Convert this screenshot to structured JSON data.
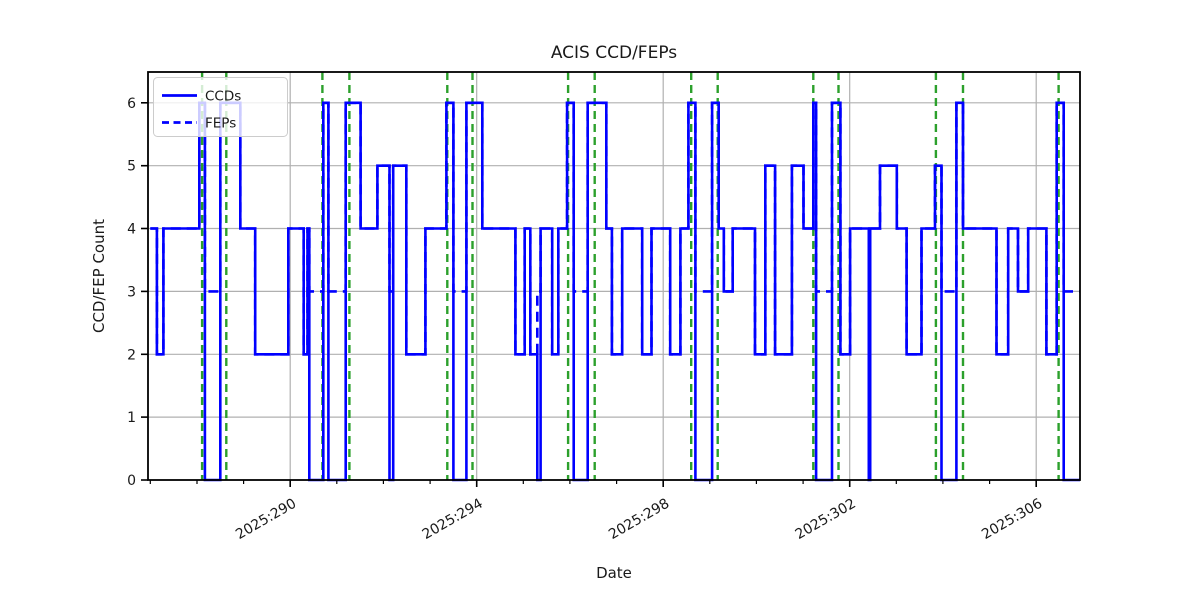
{
  "chart_data": {
    "type": "line",
    "title": "ACIS CCD/FEPs",
    "xlabel": "Date",
    "ylabel": "CCD/FEP Count",
    "xlim": [
      286.95,
      306.94
    ],
    "ylim": [
      0,
      6.49
    ],
    "grid": true,
    "background": "#ffffff",
    "x_major_ticks": [
      {
        "value": 290,
        "label": "2025:290"
      },
      {
        "value": 294,
        "label": "2025:294"
      },
      {
        "value": 298,
        "label": "2025:298"
      },
      {
        "value": 302,
        "label": "2025:302"
      },
      {
        "value": 306,
        "label": "2025:306"
      }
    ],
    "x_minor_ticks": [
      287,
      288,
      289,
      291,
      292,
      293,
      295,
      296,
      297,
      299,
      300,
      301,
      303,
      304,
      305
    ],
    "y_ticks": [
      0,
      1,
      2,
      3,
      4,
      5,
      6
    ],
    "legend": {
      "position": "upper-left",
      "entries": [
        {
          "label": "CCDs",
          "line_style": "solid",
          "color": "#0000ff"
        },
        {
          "label": "FEPs",
          "line_style": "dashed",
          "color": "#0000ff"
        }
      ]
    },
    "vlines": {
      "color": "#2ca02c",
      "line_style": "dashed",
      "x": [
        288.11,
        288.63,
        290.69,
        291.27,
        293.37,
        293.91,
        295.96,
        296.53,
        298.6,
        299.17,
        301.22,
        301.76,
        303.85,
        304.43,
        306.48
      ]
    },
    "series": [
      {
        "name": "CCDs",
        "color": "#0000ff",
        "line_style": "solid",
        "step": "post",
        "points": [
          [
            287.0,
            4
          ],
          [
            287.14,
            2
          ],
          [
            287.28,
            4
          ],
          [
            288.05,
            6
          ],
          [
            288.17,
            0
          ],
          [
            288.5,
            6
          ],
          [
            288.93,
            4
          ],
          [
            289.25,
            2
          ],
          [
            289.96,
            4
          ],
          [
            290.29,
            2
          ],
          [
            290.37,
            4
          ],
          [
            290.41,
            0
          ],
          [
            290.71,
            6
          ],
          [
            290.82,
            0
          ],
          [
            291.19,
            6
          ],
          [
            291.51,
            4
          ],
          [
            291.87,
            5
          ],
          [
            292.13,
            0
          ],
          [
            292.21,
            5
          ],
          [
            292.49,
            2
          ],
          [
            292.9,
            4
          ],
          [
            293.35,
            6
          ],
          [
            293.5,
            0
          ],
          [
            293.78,
            6
          ],
          [
            294.12,
            4
          ],
          [
            294.83,
            2
          ],
          [
            295.03,
            4
          ],
          [
            295.15,
            2
          ],
          [
            295.3,
            0
          ],
          [
            295.37,
            4
          ],
          [
            295.62,
            2
          ],
          [
            295.75,
            4
          ],
          [
            295.94,
            6
          ],
          [
            296.08,
            0
          ],
          [
            296.38,
            6
          ],
          [
            296.78,
            4
          ],
          [
            296.9,
            2
          ],
          [
            297.12,
            4
          ],
          [
            297.55,
            2
          ],
          [
            297.75,
            4
          ],
          [
            298.15,
            2
          ],
          [
            298.37,
            4
          ],
          [
            298.54,
            6
          ],
          [
            298.69,
            0
          ],
          [
            299.05,
            6
          ],
          [
            299.19,
            4
          ],
          [
            299.3,
            3
          ],
          [
            299.49,
            4
          ],
          [
            299.97,
            2
          ],
          [
            300.19,
            5
          ],
          [
            300.4,
            2
          ],
          [
            300.76,
            5
          ],
          [
            301.01,
            4
          ],
          [
            301.22,
            6
          ],
          [
            301.28,
            0
          ],
          [
            301.62,
            6
          ],
          [
            301.8,
            2
          ],
          [
            302.01,
            4
          ],
          [
            302.41,
            0
          ],
          [
            302.44,
            4
          ],
          [
            302.65,
            5
          ],
          [
            303.01,
            4
          ],
          [
            303.22,
            2
          ],
          [
            303.54,
            4
          ],
          [
            303.83,
            5
          ],
          [
            303.97,
            0
          ],
          [
            304.29,
            6
          ],
          [
            304.43,
            4
          ],
          [
            305.15,
            2
          ],
          [
            305.4,
            4
          ],
          [
            305.61,
            3
          ],
          [
            305.83,
            4
          ],
          [
            306.22,
            2
          ],
          [
            306.44,
            6
          ],
          [
            306.59,
            0
          ],
          [
            306.94,
            0
          ]
        ]
      },
      {
        "name": "FEPs",
        "color": "#0000ff",
        "line_style": "dashed",
        "step": "post",
        "points": [
          [
            287.0,
            4
          ],
          [
            287.14,
            2
          ],
          [
            287.28,
            4
          ],
          [
            288.05,
            6
          ],
          [
            288.17,
            3
          ],
          [
            288.5,
            6
          ],
          [
            288.93,
            4
          ],
          [
            289.25,
            2
          ],
          [
            289.96,
            4
          ],
          [
            290.29,
            2
          ],
          [
            290.37,
            4
          ],
          [
            290.41,
            3
          ],
          [
            290.71,
            6
          ],
          [
            290.82,
            3
          ],
          [
            291.19,
            6
          ],
          [
            291.51,
            4
          ],
          [
            291.87,
            5
          ],
          [
            292.13,
            3
          ],
          [
            292.21,
            5
          ],
          [
            292.49,
            2
          ],
          [
            292.9,
            4
          ],
          [
            293.35,
            6
          ],
          [
            293.5,
            3
          ],
          [
            293.78,
            6
          ],
          [
            294.12,
            4
          ],
          [
            294.83,
            2
          ],
          [
            295.03,
            4
          ],
          [
            295.15,
            2
          ],
          [
            295.3,
            3
          ],
          [
            295.37,
            4
          ],
          [
            295.62,
            2
          ],
          [
            295.75,
            4
          ],
          [
            295.94,
            6
          ],
          [
            296.08,
            3
          ],
          [
            296.38,
            6
          ],
          [
            296.78,
            4
          ],
          [
            296.9,
            2
          ],
          [
            297.12,
            4
          ],
          [
            297.55,
            2
          ],
          [
            297.75,
            4
          ],
          [
            298.15,
            2
          ],
          [
            298.37,
            4
          ],
          [
            298.54,
            6
          ],
          [
            298.69,
            3
          ],
          [
            299.05,
            6
          ],
          [
            299.19,
            4
          ],
          [
            299.3,
            3
          ],
          [
            299.49,
            4
          ],
          [
            299.97,
            2
          ],
          [
            300.19,
            5
          ],
          [
            300.4,
            2
          ],
          [
            300.76,
            5
          ],
          [
            301.01,
            4
          ],
          [
            301.22,
            6
          ],
          [
            301.28,
            3
          ],
          [
            301.62,
            6
          ],
          [
            301.8,
            2
          ],
          [
            302.01,
            4
          ],
          [
            302.41,
            3
          ],
          [
            302.44,
            4
          ],
          [
            302.65,
            5
          ],
          [
            303.01,
            4
          ],
          [
            303.22,
            2
          ],
          [
            303.54,
            4
          ],
          [
            303.83,
            5
          ],
          [
            303.97,
            3
          ],
          [
            304.29,
            6
          ],
          [
            304.43,
            4
          ],
          [
            305.15,
            2
          ],
          [
            305.4,
            4
          ],
          [
            305.61,
            3
          ],
          [
            305.83,
            4
          ],
          [
            306.22,
            2
          ],
          [
            306.44,
            6
          ],
          [
            306.59,
            3
          ],
          [
            306.94,
            3
          ]
        ]
      }
    ]
  },
  "colors": {
    "line_blue": "#0000ff",
    "vline_green": "#2ca02c",
    "grid_gray": "#b0b0b0",
    "spine_black": "#000000",
    "legend_border": "#cccccc",
    "legend_bg": "rgba(255,255,255,0.8)"
  }
}
